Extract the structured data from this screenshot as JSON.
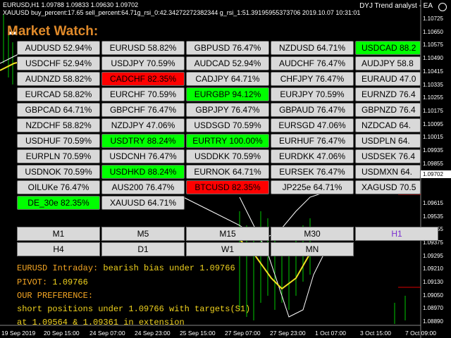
{
  "header": {
    "symbol_line": "EURUSD,H1  1.09788 1.09833 1.09630 1.09702",
    "info_line": "XAUUSD buy_percent:17.65 sell_percent:64.71g_rsi_0:42.34272272382344 g_rsi_1:51.39195955373706 2019.10.07 10:31:01",
    "ea_label": "DYJ Trend analyst - EA"
  },
  "market_watch": {
    "title": "Market Watch:",
    "rows": [
      [
        {
          "t": "AUDUSD 52.94%",
          "c": "n"
        },
        {
          "t": "EURUSD 58.82%",
          "c": "n"
        },
        {
          "t": "GBPUSD 76.47%",
          "c": "n"
        },
        {
          "t": "NZDUSD 64.71%",
          "c": "n"
        },
        {
          "t": "USDCAD 88.2",
          "c": "g"
        }
      ],
      [
        {
          "t": "USDCHF 52.94%",
          "c": "n"
        },
        {
          "t": "USDJPY 70.59%",
          "c": "n"
        },
        {
          "t": "AUDCAD 52.94%",
          "c": "n"
        },
        {
          "t": "AUDCHF 76.47%",
          "c": "n"
        },
        {
          "t": "AUDJPY 58.8",
          "c": "n"
        }
      ],
      [
        {
          "t": "AUDNZD 58.82%",
          "c": "n"
        },
        {
          "t": "CADCHF 82.35%",
          "c": "r"
        },
        {
          "t": "CADJPY 64.71%",
          "c": "n"
        },
        {
          "t": "CHFJPY 76.47%",
          "c": "n"
        },
        {
          "t": "EURAUD 47.0",
          "c": "n"
        }
      ],
      [
        {
          "t": "EURCAD 58.82%",
          "c": "n"
        },
        {
          "t": "EURCHF 70.59%",
          "c": "n"
        },
        {
          "t": "EURGBP 94.12%",
          "c": "g"
        },
        {
          "t": "EURJPY 70.59%",
          "c": "n"
        },
        {
          "t": "EURNZD 76.4",
          "c": "n"
        }
      ],
      [
        {
          "t": "GBPCAD 64.71%",
          "c": "n"
        },
        {
          "t": "GBPCHF 76.47%",
          "c": "n"
        },
        {
          "t": "GBPJPY 76.47%",
          "c": "n"
        },
        {
          "t": "GBPAUD 76.47%",
          "c": "n"
        },
        {
          "t": "GBPNZD 76.4",
          "c": "n"
        }
      ],
      [
        {
          "t": "NZDCHF 58.82%",
          "c": "n"
        },
        {
          "t": "NZDJPY 47.06%",
          "c": "n"
        },
        {
          "t": "USDSGD 70.59%",
          "c": "n"
        },
        {
          "t": "EURSGD 47.06%",
          "c": "n"
        },
        {
          "t": "NZDCAD 64.",
          "c": "n"
        }
      ],
      [
        {
          "t": "USDHUF 70.59%",
          "c": "n"
        },
        {
          "t": "USDTRY 88.24%",
          "c": "g"
        },
        {
          "t": "EURTRY 100.00%",
          "c": "g"
        },
        {
          "t": "EURHUF 76.47%",
          "c": "n"
        },
        {
          "t": "USDPLN 64.",
          "c": "n"
        }
      ],
      [
        {
          "t": "EURPLN 70.59%",
          "c": "n"
        },
        {
          "t": "USDCNH 76.47%",
          "c": "n"
        },
        {
          "t": "USDDKK 70.59%",
          "c": "n"
        },
        {
          "t": "EURDKK 47.06%",
          "c": "n"
        },
        {
          "t": "USDSEK 76.4",
          "c": "n"
        }
      ],
      [
        {
          "t": "USDNOK 70.59%",
          "c": "n"
        },
        {
          "t": "USDHKD 88.24%",
          "c": "g"
        },
        {
          "t": "EURNOK 64.71%",
          "c": "n"
        },
        {
          "t": "EURSEK 76.47%",
          "c": "n"
        },
        {
          "t": "USDMXN 64.",
          "c": "n"
        }
      ],
      [
        {
          "t": "OILUKe 76.47%",
          "c": "n"
        },
        {
          "t": "AUS200 76.47%",
          "c": "n"
        },
        {
          "t": "BTCUSD 82.35%",
          "c": "r"
        },
        {
          "t": "JP225e 64.71%",
          "c": "n"
        },
        {
          "t": "XAGUSD 70.5",
          "c": "n"
        }
      ],
      [
        {
          "t": "DE_30e 82.35%",
          "c": "g"
        },
        {
          "t": "XAUUSD 64.71%",
          "c": "n"
        }
      ]
    ]
  },
  "timeframes": {
    "row1": [
      "M1",
      "M5",
      "M15",
      "M30",
      "H1"
    ],
    "row2": [
      "H4",
      "D1",
      "W1",
      "MN"
    ],
    "active": "H1"
  },
  "console": {
    "line1_label": "EURUSD Intraday:",
    "line1_value": "bearish bias under 1.09766",
    "line2_label": "PIVOT:",
    "line2_value": "1.09766",
    "line3_label": "OUR PREFERENCE:",
    "line4": "short positions under 1.09766 with targets(S1)",
    "line5": "at 1.09564 & 1.09361 in extension"
  },
  "price_axis": [
    "1.10725",
    "1.10650",
    "1.10575",
    "1.10490",
    "1.10415",
    "1.10335",
    "1.10255",
    "1.10175",
    "1.10095",
    "1.10015",
    "1.09935",
    "1.09855",
    "1.09775",
    "1.09702",
    "1.09615",
    "1.09535",
    "1.09455",
    "1.09375",
    "1.09295",
    "1.09210",
    "1.09130",
    "1.09050",
    "1.08970",
    "1.08890"
  ],
  "current_price": "1.09702",
  "date_axis": [
    "19 Sep 2019",
    "20 Sep 15:00",
    "24 Sep 07:00",
    "24 Sep 23:00",
    "25 Sep 15:00",
    "27 Sep 07:00",
    "27 Sep 23:00",
    "1 Oct 07:00",
    "1 Oct 23:00",
    "3 Oct 15:00",
    "4 Oct 07:00",
    "7 Oct 09:00"
  ],
  "colors": {
    "green": "#00ff00",
    "red": "#ff0000",
    "neutral": "#d9d9d9",
    "title": "#e08a2a",
    "console_label": "#f5a623",
    "console_value": "#f0d21e",
    "active_tf": "#7b2fd0"
  }
}
